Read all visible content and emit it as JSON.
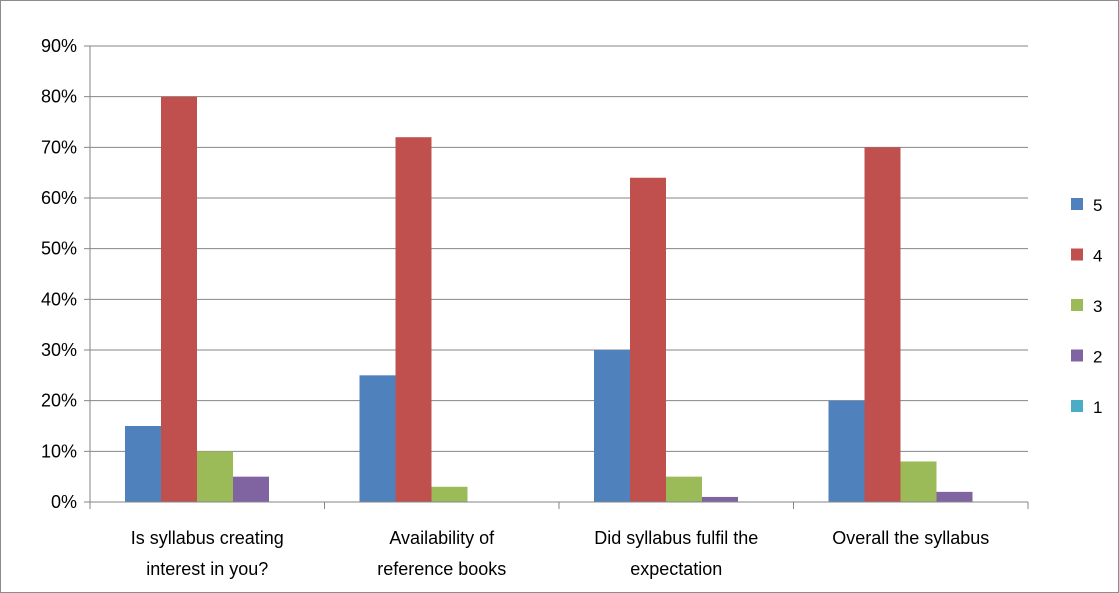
{
  "chart_data": {
    "type": "bar",
    "categories": [
      [
        "Is syllabus creating",
        "interest in you?"
      ],
      [
        "Availability of",
        "reference books"
      ],
      [
        "Did syllabus fulfil the",
        "expectation"
      ],
      [
        "Overall the syllabus"
      ]
    ],
    "series": [
      {
        "name": "5",
        "color": "#4f81bd",
        "values": [
          15,
          25,
          30,
          20
        ]
      },
      {
        "name": "4",
        "color": "#c0504d",
        "values": [
          80,
          72,
          64,
          70
        ]
      },
      {
        "name": "3",
        "color": "#9bbb59",
        "values": [
          10,
          3,
          5,
          8
        ]
      },
      {
        "name": "2",
        "color": "#8064a2",
        "values": [
          5,
          0,
          1,
          2
        ]
      },
      {
        "name": "1",
        "color": "#4bacc6",
        "values": [
          0,
          0,
          0,
          0
        ]
      }
    ],
    "ylim": [
      0,
      90
    ],
    "y_ticks": [
      "0%",
      "10%",
      "20%",
      "30%",
      "40%",
      "50%",
      "60%",
      "70%",
      "80%",
      "90%"
    ],
    "y_unit": "%",
    "grid": true,
    "legend_position": "right"
  }
}
